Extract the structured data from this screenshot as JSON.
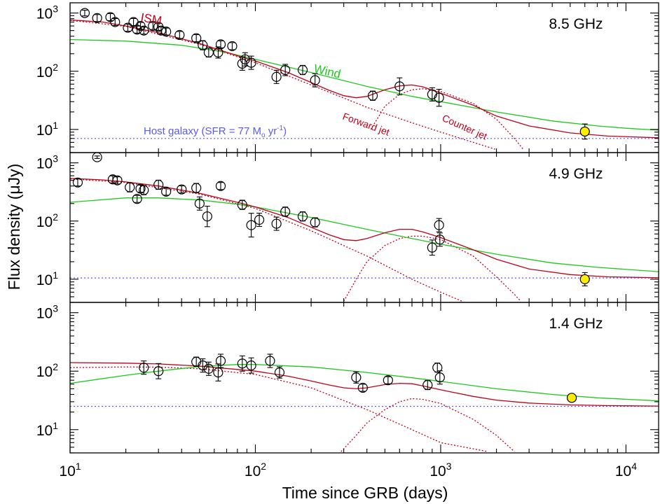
{
  "chart_data": {
    "type": "scatter",
    "xlabel": "Time since GRB (days)",
    "ylabel": "Flux density (μJy)",
    "x_scale": "log",
    "y_scale": "log",
    "xlim": [
      10,
      15000
    ],
    "ylim": [
      4,
      1500
    ],
    "x_ticks": [
      {
        "value": 10,
        "base": "10",
        "exp": "1"
      },
      {
        "value": 100,
        "base": "10",
        "exp": "2"
      },
      {
        "value": 1000,
        "base": "10",
        "exp": "3"
      },
      {
        "value": 10000,
        "base": "10",
        "exp": "4"
      }
    ],
    "y_ticks": [
      {
        "value": 10,
        "base": "10",
        "exp": "1"
      },
      {
        "value": 100,
        "base": "10",
        "exp": "2"
      },
      {
        "value": 1000,
        "base": "10",
        "exp": "3"
      }
    ],
    "colors": {
      "ism": "#c0001a",
      "wind": "#1ec81e",
      "host": "#5a5aee",
      "late_point": "#ffee00"
    },
    "panels": [
      {
        "label": "8.5 GHz",
        "host_level": 7,
        "annotations": {
          "ism": "ISM",
          "wind": "Wind",
          "forward": "Forward jet",
          "counter": "Counter jet",
          "host_prefix": "Host galaxy (SFR = 77 M",
          "host_sub": "o",
          "host_mid": " yr",
          "host_sup": "-1",
          "host_suffix": ")"
        },
        "data": [
          [
            12,
            1000,
            1.12,
            1.12
          ],
          [
            14,
            820,
            1.15,
            1.15
          ],
          [
            16.5,
            850,
            1.15,
            1.15
          ],
          [
            17.5,
            700,
            1.15,
            1.15
          ],
          [
            20.5,
            560,
            1.15,
            1.15
          ],
          [
            22,
            700,
            1.15,
            1.15
          ],
          [
            23,
            520,
            1.15,
            1.15
          ],
          [
            24,
            600,
            1.15,
            1.15
          ],
          [
            25,
            500,
            1.15,
            1.15
          ],
          [
            28,
            600,
            1.15,
            1.15
          ],
          [
            30,
            580,
            1.15,
            1.15
          ],
          [
            31,
            500,
            1.15,
            1.15
          ],
          [
            33,
            480,
            1.15,
            1.15
          ],
          [
            39,
            420,
            1.15,
            1.15
          ],
          [
            48,
            370,
            1.15,
            1.15
          ],
          [
            52,
            280,
            1.2,
            1.2
          ],
          [
            56,
            210,
            1.2,
            1.2
          ],
          [
            63,
            210,
            1.25,
            1.25
          ],
          [
            65,
            290,
            1.15,
            1.15
          ],
          [
            75,
            270,
            1.15,
            1.15
          ],
          [
            85,
            135,
            1.3,
            1.3
          ],
          [
            88,
            160,
            1.3,
            1.3
          ],
          [
            95,
            140,
            1.3,
            1.3
          ],
          [
            130,
            80,
            1.3,
            1.3
          ],
          [
            145,
            105,
            1.25,
            1.25
          ],
          [
            180,
            105,
            1.2,
            1.2
          ],
          [
            210,
            70,
            1.3,
            1.3
          ],
          [
            430,
            38,
            1.2,
            1.2
          ],
          [
            600,
            55,
            1.4,
            1.4
          ],
          [
            900,
            40,
            1.3,
            1.3
          ],
          [
            980,
            35,
            1.4,
            1.4
          ]
        ],
        "late": [
          [
            6000,
            9.2,
            1.35,
            1.35
          ]
        ],
        "ism_curve": [
          [
            10,
            760
          ],
          [
            15,
            700
          ],
          [
            20,
            600
          ],
          [
            30,
            460
          ],
          [
            50,
            300
          ],
          [
            80,
            185
          ],
          [
            100,
            150
          ],
          [
            150,
            95
          ],
          [
            200,
            64
          ],
          [
            250,
            47
          ],
          [
            300,
            38
          ],
          [
            350,
            35
          ],
          [
            400,
            37
          ],
          [
            500,
            48
          ],
          [
            600,
            56
          ],
          [
            700,
            58
          ],
          [
            800,
            54
          ],
          [
            1000,
            42
          ],
          [
            1500,
            26
          ],
          [
            2000,
            17
          ],
          [
            3000,
            11.5
          ],
          [
            5000,
            8.7
          ],
          [
            8000,
            7.7
          ],
          [
            15000,
            7.2
          ]
        ],
        "forward_curve": [
          [
            10,
            750
          ],
          [
            20,
            590
          ],
          [
            50,
            290
          ],
          [
            100,
            140
          ],
          [
            200,
            58
          ],
          [
            400,
            24
          ],
          [
            700,
            13
          ],
          [
            1000,
            9
          ],
          [
            1500,
            6
          ],
          [
            2000,
            4.5
          ]
        ],
        "counter_curve": [
          [
            420,
            10
          ],
          [
            500,
            25
          ],
          [
            600,
            40
          ],
          [
            700,
            48
          ],
          [
            800,
            50
          ],
          [
            1000,
            45
          ],
          [
            1500,
            28
          ],
          [
            2000,
            15
          ],
          [
            2500,
            7
          ],
          [
            2800,
            4.5
          ]
        ],
        "wind_curve": [
          [
            10,
            350
          ],
          [
            20,
            330
          ],
          [
            40,
            280
          ],
          [
            70,
            210
          ],
          [
            100,
            160
          ],
          [
            200,
            95
          ],
          [
            400,
            55
          ],
          [
            700,
            37
          ],
          [
            1000,
            30
          ],
          [
            2000,
            20
          ],
          [
            4000,
            14
          ],
          [
            7000,
            11.5
          ],
          [
            10000,
            10.5
          ],
          [
            15000,
            9.7
          ]
        ]
      },
      {
        "label": "4.9 GHz",
        "host_level": 10.5,
        "data": [
          [
            11,
            460,
            1.15,
            1.15
          ],
          [
            14,
            1250,
            1.05,
            1.05
          ],
          [
            17,
            520,
            1.15,
            1.15
          ],
          [
            18,
            500,
            1.15,
            1.15
          ],
          [
            21,
            380,
            1.2,
            1.2
          ],
          [
            23,
            240,
            1.15,
            1.15
          ],
          [
            24,
            360,
            1.15,
            1.15
          ],
          [
            25,
            340,
            1.2,
            1.2
          ],
          [
            30,
            420,
            1.2,
            1.2
          ],
          [
            33,
            320,
            1.15,
            1.15
          ],
          [
            40,
            350,
            1.15,
            1.15
          ],
          [
            48,
            370,
            1.2,
            1.2
          ],
          [
            50,
            200,
            1.3,
            1.3
          ],
          [
            55,
            120,
            1.5,
            1.5
          ],
          [
            65,
            400,
            1.15,
            1.15
          ],
          [
            85,
            190,
            1.2,
            1.2
          ],
          [
            95,
            85,
            1.6,
            1.6
          ],
          [
            105,
            105,
            1.3,
            1.3
          ],
          [
            130,
            90,
            1.3,
            1.3
          ],
          [
            145,
            145,
            1.2,
            1.2
          ],
          [
            180,
            120,
            1.2,
            1.2
          ],
          [
            210,
            95,
            1.2,
            1.2
          ],
          [
            900,
            35,
            1.35,
            1.35
          ],
          [
            980,
            85,
            1.3,
            1.3
          ],
          [
            990,
            48,
            1.3,
            1.3
          ]
        ],
        "late": [
          [
            6000,
            10,
            1.3,
            1.3
          ]
        ],
        "ism_curve": [
          [
            10,
            540
          ],
          [
            15,
            510
          ],
          [
            20,
            470
          ],
          [
            30,
            400
          ],
          [
            50,
            300
          ],
          [
            80,
            210
          ],
          [
            100,
            175
          ],
          [
            150,
            115
          ],
          [
            200,
            78
          ],
          [
            250,
            58
          ],
          [
            300,
            48
          ],
          [
            350,
            46
          ],
          [
            400,
            50
          ],
          [
            500,
            63
          ],
          [
            600,
            72
          ],
          [
            700,
            72
          ],
          [
            800,
            65
          ],
          [
            1000,
            52
          ],
          [
            1500,
            32
          ],
          [
            2000,
            22
          ],
          [
            3000,
            15
          ],
          [
            5000,
            12
          ],
          [
            8000,
            11
          ],
          [
            15000,
            10.6
          ]
        ],
        "forward_curve": [
          [
            10,
            530
          ],
          [
            20,
            460
          ],
          [
            50,
            290
          ],
          [
            100,
            165
          ],
          [
            200,
            68
          ],
          [
            400,
            25
          ],
          [
            700,
            10
          ],
          [
            1000,
            6
          ],
          [
            1300,
            4.2
          ]
        ],
        "counter_curve": [
          [
            300,
            4.2
          ],
          [
            350,
            10
          ],
          [
            400,
            20
          ],
          [
            500,
            38
          ],
          [
            600,
            50
          ],
          [
            700,
            55
          ],
          [
            800,
            55
          ],
          [
            1000,
            48
          ],
          [
            1500,
            25
          ],
          [
            2000,
            11
          ],
          [
            2500,
            5.5
          ],
          [
            2700,
            4.2
          ]
        ],
        "wind_curve": [
          [
            10,
            210
          ],
          [
            20,
            250
          ],
          [
            30,
            250
          ],
          [
            50,
            230
          ],
          [
            80,
            195
          ],
          [
            100,
            175
          ],
          [
            200,
            115
          ],
          [
            400,
            72
          ],
          [
            700,
            50
          ],
          [
            1000,
            40
          ],
          [
            2000,
            27
          ],
          [
            4000,
            19
          ],
          [
            7000,
            16
          ],
          [
            15000,
            13.5
          ]
        ]
      },
      {
        "label": "1.4 GHz",
        "host_level": 25,
        "data": [
          [
            25,
            115,
            1.3,
            1.3
          ],
          [
            30,
            100,
            1.35,
            1.35
          ],
          [
            48,
            145,
            1.2,
            1.2
          ],
          [
            52,
            125,
            1.3,
            1.3
          ],
          [
            56,
            110,
            1.3,
            1.3
          ],
          [
            63,
            95,
            1.4,
            1.4
          ],
          [
            65,
            150,
            1.3,
            1.3
          ],
          [
            85,
            135,
            1.35,
            1.35
          ],
          [
            95,
            125,
            1.35,
            1.35
          ],
          [
            120,
            150,
            1.3,
            1.3
          ],
          [
            135,
            95,
            1.25,
            1.25
          ],
          [
            350,
            78,
            1.25,
            1.25
          ],
          [
            380,
            52,
            1.15,
            1.15
          ],
          [
            520,
            70,
            1.15,
            1.15
          ],
          [
            850,
            58,
            1.2,
            1.2
          ],
          [
            960,
            115,
            1.2,
            1.2
          ],
          [
            990,
            78,
            1.3,
            1.3
          ]
        ],
        "late": [
          [
            5100,
            35,
            1.15,
            1.15
          ]
        ],
        "ism_curve": [
          [
            10,
            140
          ],
          [
            20,
            137
          ],
          [
            30,
            133
          ],
          [
            50,
            122
          ],
          [
            80,
            107
          ],
          [
            100,
            100
          ],
          [
            150,
            82
          ],
          [
            200,
            68
          ],
          [
            250,
            58
          ],
          [
            300,
            52
          ],
          [
            350,
            50
          ],
          [
            400,
            52
          ],
          [
            500,
            59
          ],
          [
            600,
            62
          ],
          [
            700,
            61
          ],
          [
            800,
            56
          ],
          [
            1000,
            48
          ],
          [
            1500,
            37
          ],
          [
            2000,
            32
          ],
          [
            3000,
            28.5
          ],
          [
            5000,
            26.5
          ],
          [
            8000,
            25.7
          ],
          [
            15000,
            25.3
          ]
        ],
        "forward_curve": [
          [
            10,
            115
          ],
          [
            20,
            118
          ],
          [
            30,
            117
          ],
          [
            50,
            110
          ],
          [
            100,
            88
          ],
          [
            200,
            52
          ],
          [
            400,
            22
          ],
          [
            700,
            10
          ],
          [
            1000,
            6
          ],
          [
            1800,
            4.2
          ]
        ],
        "counter_curve": [
          [
            290,
            4.2
          ],
          [
            350,
            8
          ],
          [
            400,
            13
          ],
          [
            500,
            22
          ],
          [
            600,
            30
          ],
          [
            700,
            34
          ],
          [
            800,
            33
          ],
          [
            1000,
            28
          ],
          [
            1500,
            15
          ],
          [
            2000,
            8
          ],
          [
            2500,
            4.2
          ]
        ],
        "wind_curve": [
          [
            10,
            62
          ],
          [
            20,
            85
          ],
          [
            30,
            100
          ],
          [
            50,
            120
          ],
          [
            80,
            130
          ],
          [
            100,
            130
          ],
          [
            200,
            118
          ],
          [
            400,
            95
          ],
          [
            700,
            77
          ],
          [
            1000,
            67
          ],
          [
            2000,
            50
          ],
          [
            4000,
            40
          ],
          [
            7000,
            35
          ],
          [
            15000,
            31
          ]
        ]
      }
    ]
  }
}
